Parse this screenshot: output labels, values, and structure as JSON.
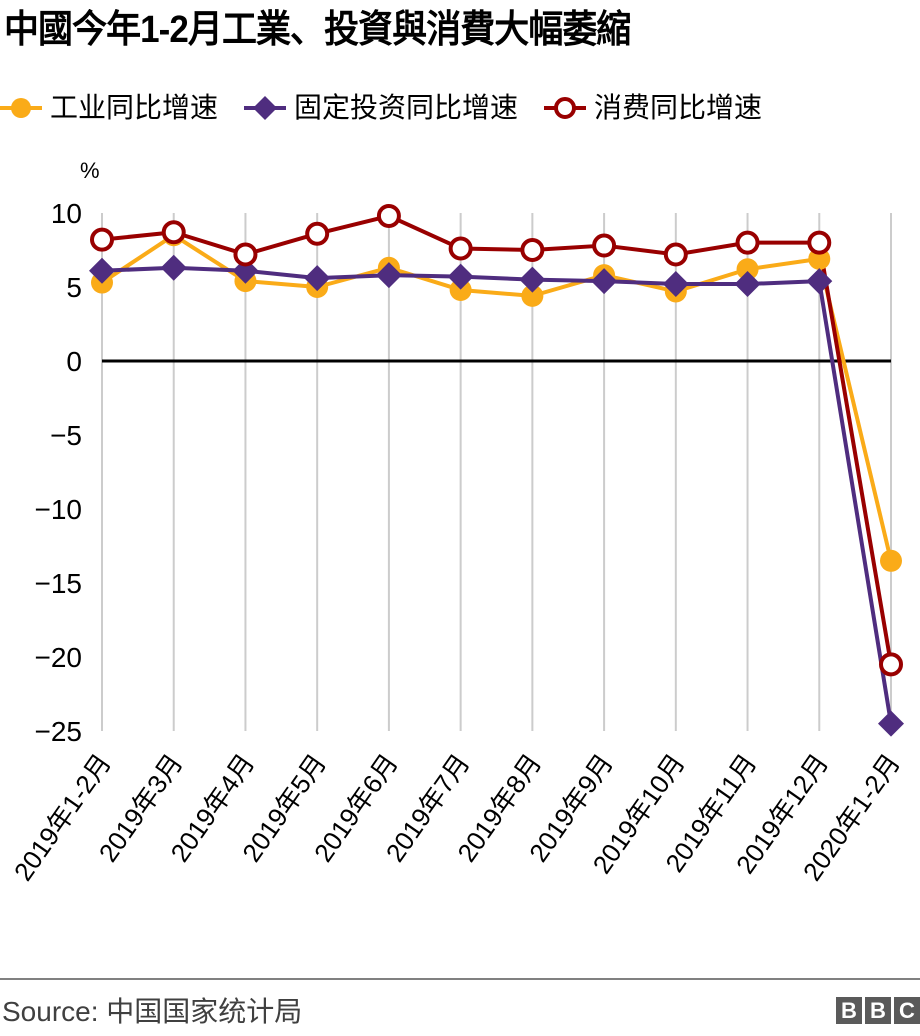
{
  "title": "中國今年1-2月工業、投資與消費大幅萎縮",
  "legend": [
    {
      "label": "工业同比增速",
      "icon": "circle-filled",
      "color": "#FAAB18"
    },
    {
      "label": "固定投资同比增速",
      "icon": "diamond-filled",
      "color": "#4F2D7F"
    },
    {
      "label": "消费同比增速",
      "icon": "circle-hollow",
      "color": "#990000"
    }
  ],
  "y_unit": "%",
  "footer": {
    "source": "Source: 中国国家统计局",
    "logo": [
      "B",
      "B",
      "C"
    ]
  },
  "colors": {
    "industry": "#FAAB18",
    "investment": "#4F2D7F",
    "consumption": "#990000",
    "grid": "#CCCCCC",
    "zero_line": "#000000"
  },
  "chart_data": {
    "type": "line",
    "title": "中國今年1-2月工業、投資與消費大幅萎縮",
    "xlabel": "",
    "ylabel": "%",
    "ylim": [
      -25,
      10
    ],
    "yticks": [
      10,
      5,
      0,
      -5,
      -10,
      -15,
      -20,
      -25
    ],
    "ytick_labels": [
      "10",
      "5",
      "0",
      "−5",
      "−10",
      "−15",
      "−20",
      "−25"
    ],
    "grid": "vertical",
    "legend_position": "top",
    "categories": [
      "2019年1-2月",
      "2019年3月",
      "2019年4月",
      "2019年5月",
      "2019年6月",
      "2019年7月",
      "2019年8月",
      "2019年9月",
      "2019年10月",
      "2019年11月",
      "2019年12月",
      "2020年1-2月"
    ],
    "series": [
      {
        "name": "工业同比增速",
        "marker": "circle-filled",
        "color": "#FAAB18",
        "values": [
          5.3,
          8.5,
          5.4,
          5.0,
          6.3,
          4.8,
          4.4,
          5.8,
          4.7,
          6.2,
          6.9,
          -13.5
        ]
      },
      {
        "name": "固定投资同比增速",
        "marker": "diamond-filled",
        "color": "#4F2D7F",
        "values": [
          6.1,
          6.3,
          6.1,
          5.6,
          5.8,
          5.7,
          5.5,
          5.4,
          5.2,
          5.2,
          5.4,
          -24.5
        ]
      },
      {
        "name": "消费同比增速",
        "marker": "circle-hollow",
        "color": "#990000",
        "values": [
          8.2,
          8.7,
          7.2,
          8.6,
          9.8,
          7.6,
          7.5,
          7.8,
          7.2,
          8.0,
          8.0,
          -20.5
        ]
      }
    ]
  }
}
